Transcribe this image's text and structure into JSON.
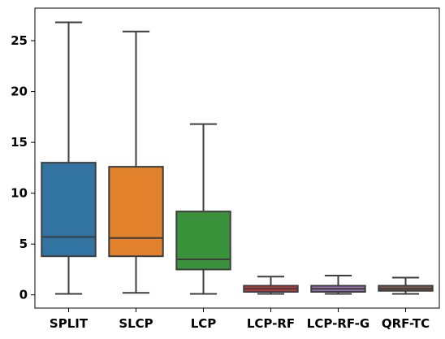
{
  "chart_data": {
    "type": "box",
    "categories": [
      "SPLIT",
      "SLCP",
      "LCP",
      "LCP-RF",
      "LCP-RF-G",
      "QRF-TC"
    ],
    "boxes": [
      {
        "category": "SPLIT",
        "whisker_low": 0.1,
        "q1": 3.8,
        "median": 5.7,
        "q3": 13.0,
        "whisker_high": 26.8,
        "color": "#3274a1"
      },
      {
        "category": "SLCP",
        "whisker_low": 0.2,
        "q1": 3.8,
        "median": 5.6,
        "q3": 12.6,
        "whisker_high": 25.9,
        "color": "#e1812c"
      },
      {
        "category": "LCP",
        "whisker_low": 0.1,
        "q1": 2.5,
        "median": 3.5,
        "q3": 8.2,
        "whisker_high": 16.8,
        "color": "#3a923a"
      },
      {
        "category": "LCP-RF",
        "whisker_low": 0.1,
        "q1": 0.3,
        "median": 0.6,
        "q3": 0.9,
        "whisker_high": 1.8,
        "color": "#c03d3e"
      },
      {
        "category": "LCP-RF-G",
        "whisker_low": 0.1,
        "q1": 0.3,
        "median": 0.6,
        "q3": 0.9,
        "whisker_high": 1.9,
        "color": "#9372b2"
      },
      {
        "category": "QRF-TC",
        "whisker_low": 0.1,
        "q1": 0.4,
        "median": 0.6,
        "q3": 0.9,
        "whisker_high": 1.7,
        "color": "#845b53"
      }
    ],
    "yticks": [
      0,
      5,
      10,
      15,
      20,
      25
    ],
    "ylim": [
      -1.3,
      28.2
    ],
    "title": "",
    "xlabel": "",
    "ylabel": "",
    "grid": false,
    "line_color": "#3d3d3d"
  }
}
